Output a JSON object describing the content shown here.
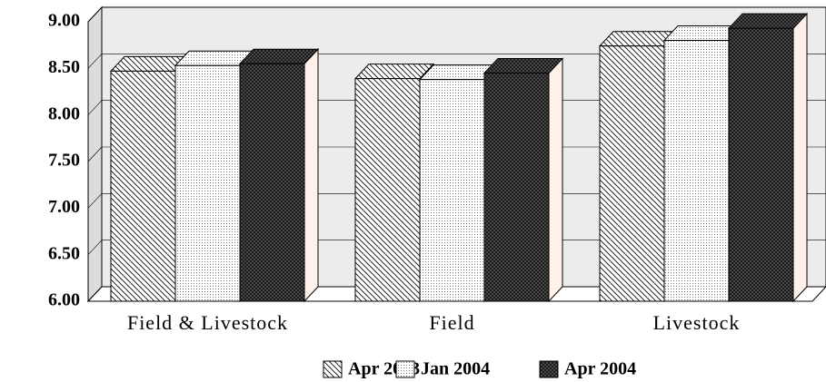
{
  "chart_data": {
    "type": "bar3d",
    "categories": [
      "Field & Livestock",
      "Field",
      "Livestock"
    ],
    "series": [
      {
        "name": "Apr 2003",
        "color": "#000000",
        "values": [
          8.47,
          8.39,
          8.74
        ]
      },
      {
        "name": "Jan 2004",
        "color": "#000000",
        "values": [
          8.53,
          8.38,
          8.8
        ]
      },
      {
        "name": "Apr 2004",
        "color": "#000000",
        "values": [
          8.55,
          8.45,
          8.93
        ]
      }
    ],
    "ylim": [
      6,
      9
    ],
    "yticks": [
      {
        "value": 6,
        "label": "6.00"
      },
      {
        "value": 6.5,
        "label": "6.50"
      },
      {
        "value": 7,
        "label": "7.00"
      },
      {
        "value": 7.5,
        "label": "7.50"
      },
      {
        "value": 8,
        "label": "8.00"
      },
      {
        "value": 8.5,
        "label": "8.50"
      },
      {
        "value": 9,
        "label": "9.00"
      }
    ],
    "grid": true
  }
}
